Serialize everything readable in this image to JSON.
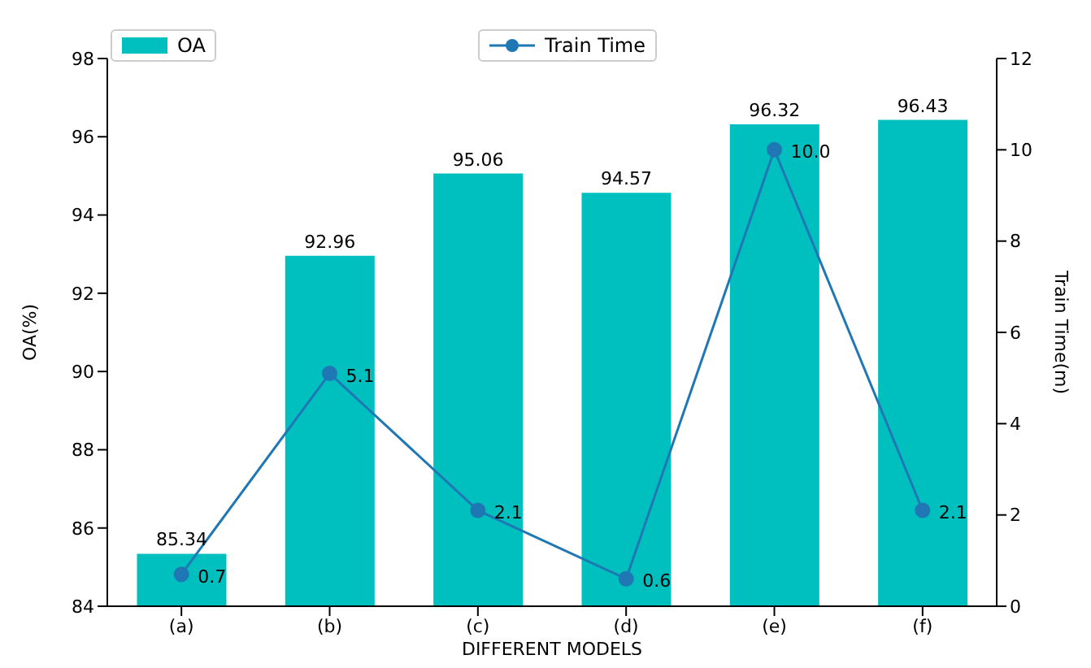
{
  "chart_data": {
    "type": "bar",
    "xlabel": "DIFFERENT MODELS",
    "ylabel": "OA(%)",
    "y2label": "Train Time(m)",
    "categories": [
      "(a)",
      "(b)",
      "(c)",
      "(d)",
      "(e)",
      "(f)"
    ],
    "series": [
      {
        "name": "OA",
        "color": "#00bfbf",
        "values": [
          85.34,
          92.96,
          95.06,
          94.57,
          96.32,
          96.43
        ],
        "value_labels": [
          "85.34",
          "92.96",
          "95.06",
          "94.57",
          "96.32",
          "96.43"
        ]
      },
      {
        "name": "Train Time",
        "type": "line",
        "axis": "y2",
        "color": "#1f77b4",
        "marker": "circle",
        "values": [
          0.7,
          5.1,
          2.1,
          0.6,
          10.0,
          2.1
        ],
        "value_labels": [
          "0.7",
          "5.1",
          "2.1",
          "0.6",
          "10.0",
          "2.1"
        ]
      }
    ],
    "ylim": [
      84,
      98
    ],
    "yticks": [
      84,
      86,
      88,
      90,
      92,
      94,
      96,
      98
    ],
    "y2lim": [
      0,
      12
    ],
    "y2ticks": [
      0,
      2,
      4,
      6,
      8,
      10,
      12
    ],
    "legend": "top"
  }
}
